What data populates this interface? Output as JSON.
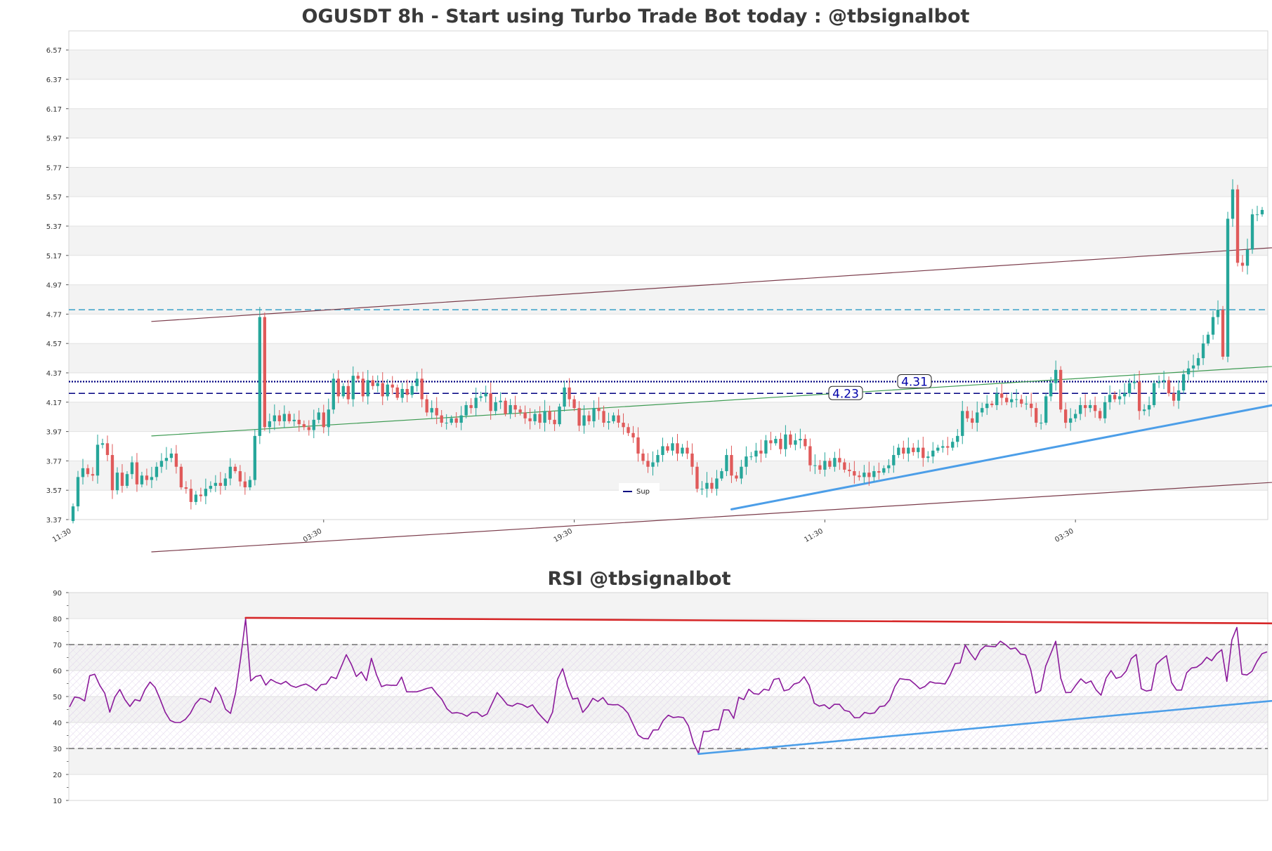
{
  "chart_data": [
    {
      "type": "candlestick",
      "title": "OGUSDT 8h - Start using Turbo Trade Bot today : @tbsignalbot",
      "ylim": [
        3.37,
        6.7
      ],
      "y_ticks": [
        3.37,
        3.57,
        3.77,
        3.97,
        4.17,
        4.37,
        4.57,
        4.77,
        4.97,
        5.17,
        5.37,
        5.57,
        5.77,
        5.97,
        6.17,
        6.37,
        6.57
      ],
      "x_ticks": [
        {
          "index": 0,
          "label": "11:30"
        },
        {
          "index": 51,
          "label": "03:30"
        },
        {
          "index": 102,
          "label": "19:30"
        },
        {
          "index": 153,
          "label": "11:30"
        },
        {
          "index": 204,
          "label": "03:30"
        }
      ],
      "grid": true,
      "horizontal_lines": [
        {
          "value": 4.8,
          "color": "#3aa0c8",
          "style": "dashed"
        },
        {
          "value": 4.31,
          "color": "#000080",
          "style": "dotted",
          "label": "4.31"
        },
        {
          "value": 4.23,
          "color": "#000080",
          "style": "dashed",
          "label": "4.23"
        }
      ],
      "trendlines": [
        {
          "x": [
            16,
            252
          ],
          "y": [
            4.72,
            5.24
          ],
          "color": "#7a3b4a"
        },
        {
          "x": [
            16,
            252
          ],
          "y": [
            3.15,
            3.64
          ],
          "color": "#7a3b4a"
        },
        {
          "x": [
            16,
            252
          ],
          "y": [
            3.94,
            4.43
          ],
          "color": "#3d9a52"
        },
        {
          "x": [
            134,
            255
          ],
          "y": [
            3.44,
            4.22
          ],
          "color": "#4c9ee8",
          "width": 3
        }
      ],
      "legend": {
        "label": "Sup",
        "color": "#000080",
        "placement": "bottom-center"
      },
      "up_color": "#26a69a",
      "down_color": "#e05a5a",
      "closes": [
        3.46,
        3.66,
        3.72,
        3.68,
        3.67,
        3.88,
        3.89,
        3.81,
        3.57,
        3.69,
        3.6,
        3.68,
        3.76,
        3.61,
        3.67,
        3.64,
        3.66,
        3.73,
        3.77,
        3.79,
        3.82,
        3.73,
        3.59,
        3.58,
        3.49,
        3.54,
        3.53,
        3.58,
        3.6,
        3.62,
        3.6,
        3.65,
        3.73,
        3.7,
        3.63,
        3.59,
        3.64,
        3.94,
        4.75,
        4.0,
        4.04,
        4.08,
        4.04,
        4.09,
        4.04,
        4.05,
        4.02,
        4.0,
        3.98,
        4.05,
        4.1,
        4.0,
        4.12,
        4.33,
        4.21,
        4.28,
        4.19,
        4.35,
        4.33,
        4.21,
        4.32,
        4.28,
        4.3,
        4.21,
        4.29,
        4.27,
        4.2,
        4.26,
        4.22,
        4.28,
        4.33,
        4.19,
        4.1,
        4.13,
        4.08,
        4.03,
        4.03,
        4.06,
        4.03,
        4.08,
        4.15,
        4.13,
        4.2,
        4.21,
        4.23,
        4.11,
        4.17,
        4.18,
        4.09,
        4.15,
        4.12,
        4.1,
        4.06,
        4.04,
        4.09,
        4.03,
        4.11,
        4.05,
        4.02,
        4.14,
        4.27,
        4.19,
        4.13,
        4.01,
        4.08,
        4.04,
        4.13,
        4.11,
        4.03,
        4.04,
        4.08,
        4.03,
        4.0,
        3.96,
        3.93,
        3.82,
        3.77,
        3.73,
        3.76,
        3.81,
        3.87,
        3.84,
        3.89,
        3.82,
        3.86,
        3.82,
        3.73,
        3.58,
        3.58,
        3.62,
        3.58,
        3.65,
        3.7,
        3.81,
        3.67,
        3.65,
        3.73,
        3.8,
        3.8,
        3.84,
        3.82,
        3.91,
        3.89,
        3.92,
        3.85,
        3.95,
        3.88,
        3.91,
        3.92,
        3.87,
        3.74,
        3.74,
        3.71,
        3.77,
        3.73,
        3.79,
        3.76,
        3.71,
        3.7,
        3.67,
        3.66,
        3.69,
        3.66,
        3.7,
        3.69,
        3.72,
        3.74,
        3.81,
        3.86,
        3.82,
        3.86,
        3.83,
        3.86,
        3.79,
        3.8,
        3.84,
        3.86,
        3.87,
        3.86,
        3.9,
        3.94,
        4.11,
        4.06,
        4.03,
        4.1,
        4.13,
        4.16,
        4.15,
        4.23,
        4.2,
        4.17,
        4.19,
        4.19,
        4.16,
        4.16,
        4.13,
        4.03,
        4.03,
        4.21,
        4.3,
        4.39,
        4.12,
        4.03,
        4.06,
        4.09,
        4.15,
        4.13,
        4.15,
        4.11,
        4.06,
        4.17,
        4.22,
        4.19,
        4.21,
        4.23,
        4.3,
        4.31,
        4.11,
        4.12,
        4.15,
        4.3,
        4.31,
        4.32,
        4.23,
        4.18,
        4.25,
        4.36,
        4.4,
        4.42,
        4.47,
        4.57,
        4.63,
        4.75,
        4.8,
        4.48,
        5.42,
        5.62,
        5.12,
        5.1,
        5.21,
        5.45,
        5.45,
        5.48
      ]
    },
    {
      "type": "line",
      "title": "RSI @tbsignalbot",
      "ylim": [
        10,
        90
      ],
      "y_ticks": [
        10,
        20,
        30,
        40,
        50,
        60,
        70,
        80,
        90
      ],
      "grid": true,
      "reference_lines": [
        {
          "value": 70,
          "style": "dashed"
        },
        {
          "value": 30,
          "style": "dashed"
        }
      ],
      "series": [
        {
          "values": [
            46.0,
            49.8,
            49.5,
            48.3,
            58.0,
            58.6,
            54.3,
            51.3,
            44.0,
            49.8,
            52.7,
            48.8,
            46.2,
            48.8,
            48.3,
            52.7,
            55.6,
            53.5,
            49.0,
            44.0,
            40.8,
            40.0,
            40.0,
            41.2,
            43.5,
            47.2,
            49.3,
            48.9,
            47.7,
            53.5,
            50.4,
            45.1,
            43.5,
            51.5,
            64.7,
            79.9,
            56.0,
            57.7,
            58.2,
            54.4,
            56.6,
            55.5,
            54.8,
            55.8,
            54.2,
            53.5,
            54.3,
            54.8,
            53.7,
            52.3,
            54.6,
            54.8,
            57.6,
            56.9,
            61.5,
            66.1,
            62.4,
            57.7,
            59.5,
            56.1,
            64.7,
            58.4,
            53.8,
            54.5,
            54.3,
            54.3,
            57.5,
            51.8,
            51.8,
            51.8,
            52.4,
            53.1,
            53.5,
            51.0,
            48.9,
            45.3,
            43.6,
            43.8,
            43.4,
            42.4,
            43.9,
            43.9,
            42.3,
            43.3,
            47.5,
            51.5,
            49.3,
            46.8,
            46.3,
            47.4,
            46.9,
            45.8,
            46.8,
            44.0,
            41.8,
            39.8,
            44.0,
            56.7,
            60.7,
            53.9,
            49.0,
            49.4,
            43.9,
            46.1,
            49.3,
            48.1,
            49.6,
            47.0,
            46.8,
            46.9,
            45.7,
            43.5,
            39.3,
            35.2,
            33.9,
            33.7,
            37.1,
            37.2,
            40.8,
            42.8,
            41.9,
            42.2,
            41.9,
            38.7,
            32.1,
            28.1,
            36.6,
            36.6,
            37.3,
            37.2,
            44.9,
            44.8,
            41.6,
            49.7,
            48.8,
            52.8,
            51.1,
            50.9,
            52.8,
            52.4,
            56.6,
            57.0,
            52.2,
            52.7,
            54.8,
            55.4,
            57.6,
            54.3,
            47.4,
            46.3,
            46.8,
            45.3,
            47.0,
            47.0,
            44.7,
            44.2,
            41.8,
            41.9,
            43.9,
            43.4,
            43.7,
            46.1,
            46.4,
            48.7,
            53.8,
            56.9,
            56.6,
            56.4,
            54.8,
            53.0,
            53.9,
            55.7,
            55.2,
            55.1,
            54.8,
            58.3,
            62.7,
            62.9,
            69.8,
            66.7,
            64.1,
            67.8,
            69.5,
            69.3,
            69.2,
            71.3,
            70.0,
            68.3,
            68.7,
            66.4,
            66.0,
            60.5,
            51.3,
            52.3,
            61.7,
            66.5,
            71.3,
            57.0,
            51.5,
            51.6,
            54.4,
            56.8,
            55.1,
            56.0,
            52.6,
            50.5,
            57.1,
            60.0,
            57.0,
            57.6,
            59.8,
            64.6,
            66.2,
            53.0,
            52.1,
            52.5,
            62.4,
            64.3,
            65.7,
            55.4,
            52.5,
            52.5,
            59.1,
            61.0,
            61.3,
            62.7,
            65.1,
            63.8,
            66.5,
            68.0,
            55.8,
            71.8,
            76.6,
            58.6,
            58.3,
            59.7,
            63.6,
            66.5,
            67.2
          ]
        }
      ],
      "trendlines": [
        {
          "x": [
            35,
            255
          ],
          "y": [
            80.3,
            78.0
          ],
          "color": "#d62728"
        },
        {
          "x": [
            125,
            255
          ],
          "y": [
            27.9,
            51.2
          ],
          "color": "#4c9ee8"
        }
      ]
    }
  ]
}
